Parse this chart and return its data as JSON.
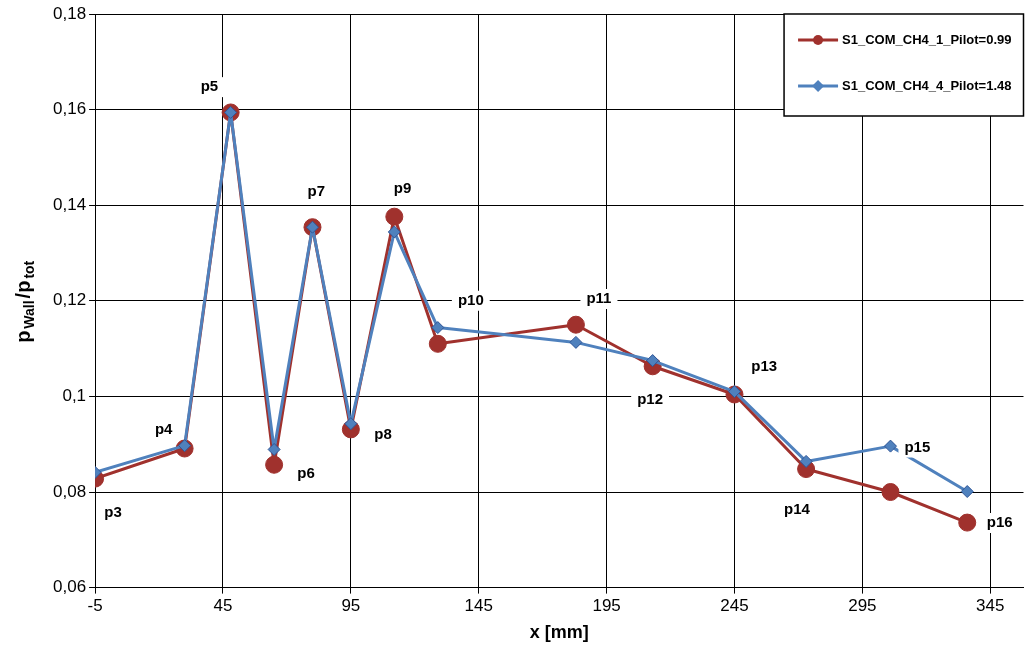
{
  "chart_data": {
    "type": "line",
    "xlabel": "x [mm]",
    "ylabel": "p$_{Wall}$/p$_{tot}$",
    "x": [
      -5,
      30,
      48,
      65,
      80,
      95,
      112,
      129,
      183,
      213,
      245,
      273,
      306,
      336
    ],
    "series": [
      {
        "name": "S1_COM_CH4_1_Pilot=0.99",
        "color": "#a0312d",
        "marker": "circle",
        "values": [
          0.0828,
          0.0891,
          0.1594,
          0.0857,
          0.1354,
          0.0931,
          0.1376,
          0.111,
          0.115,
          0.1063,
          0.1004,
          0.0848,
          0.08,
          0.0736
        ]
      },
      {
        "name": "S1_COM_CH4_4_Pilot=1.48",
        "color": "#4f81bd",
        "marker": "diamond",
        "values": [
          0.0841,
          0.0897,
          0.1594,
          0.0889,
          0.1354,
          0.0943,
          0.1344,
          0.1144,
          0.1113,
          0.1075,
          0.101,
          0.0864,
          0.0896,
          0.0801
        ]
      }
    ],
    "xlim": [
      -5,
      358
    ],
    "xticks": [
      -5,
      45,
      95,
      145,
      195,
      245,
      295,
      345
    ],
    "ylim": [
      0.06,
      0.18
    ],
    "yticks": [
      {
        "value": 0.06,
        "label": "0,06"
      },
      {
        "value": 0.08,
        "label": "0,08"
      },
      {
        "value": 0.1,
        "label": "0,1"
      },
      {
        "value": 0.12,
        "label": "0,12"
      },
      {
        "value": 0.14,
        "label": "0,14"
      },
      {
        "value": 0.16,
        "label": "0,16"
      },
      {
        "value": 0.18,
        "label": "0,18"
      }
    ],
    "grid": true,
    "legend": "top right",
    "line_style": "solid",
    "annotations": [
      {
        "text": "p3",
        "x": 2,
        "y": 0.0756
      },
      {
        "text": "p4",
        "x": 21.8,
        "y": 0.0931
      },
      {
        "text": "p5",
        "x": 39.7,
        "y": 0.1647
      },
      {
        "text": "p6",
        "x": 77.5,
        "y": 0.0837
      },
      {
        "text": "p7",
        "x": 81.5,
        "y": 0.1428
      },
      {
        "text": "p8",
        "x": 107.6,
        "y": 0.092
      },
      {
        "text": "p9",
        "x": 115.2,
        "y": 0.1434
      },
      {
        "text": "p10",
        "x": 141.9,
        "y": 0.12
      },
      {
        "text": "p11",
        "x": 192,
        "y": 0.1204
      },
      {
        "text": "p12",
        "x": 212,
        "y": 0.0993
      },
      {
        "text": "p13",
        "x": 256.6,
        "y": 0.1062
      },
      {
        "text": "p14",
        "x": 269.4,
        "y": 0.0762
      },
      {
        "text": "p15",
        "x": 316.5,
        "y": 0.0893
      },
      {
        "text": "p16",
        "x": 348.7,
        "y": 0.0735
      }
    ]
  }
}
